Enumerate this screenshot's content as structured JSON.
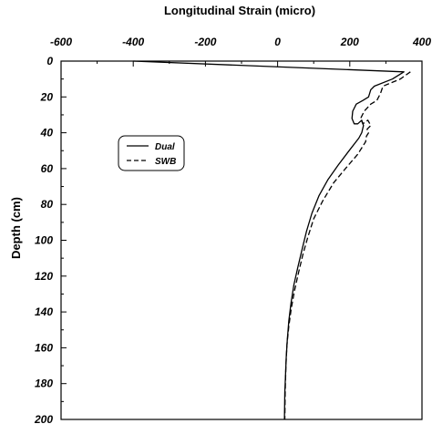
{
  "chart_data": {
    "type": "line",
    "title": "Longitudinal Strain (micro)",
    "ylabel": "Depth (cm)",
    "xlabel": "",
    "xlim": [
      -600,
      400
    ],
    "ylim": [
      0,
      200
    ],
    "y_inverted": true,
    "x_axis_position": "top",
    "x_ticks": [
      "-600",
      "-400",
      "-200",
      "0",
      "200",
      "400"
    ],
    "y_ticks": [
      "0",
      "20",
      "40",
      "60",
      "80",
      "100",
      "120",
      "140",
      "160",
      "180",
      "200"
    ],
    "grid": false,
    "legend_position": "center-left",
    "series": [
      {
        "name": "Dual",
        "style": "solid",
        "color": "#000000",
        "x": [
          -400,
          350,
          318,
          268,
          258,
          252,
          236,
          218,
          208,
          206,
          212,
          222,
          233,
          238,
          233,
          225,
          198,
          168,
          140,
          115,
          95,
          80,
          68,
          56,
          45,
          37,
          31,
          27,
          24,
          22,
          20,
          19
        ],
        "y": [
          0,
          6,
          10,
          14,
          16,
          20,
          22,
          24,
          28,
          32,
          35,
          35,
          33,
          36,
          40,
          43,
          50,
          58,
          66,
          75,
          85,
          95,
          105,
          115,
          125,
          135,
          145,
          155,
          165,
          175,
          185,
          200
        ]
      },
      {
        "name": "SWB",
        "style": "dashed",
        "color": "#000000",
        "x": [
          368,
          340,
          292,
          285,
          275,
          258,
          240,
          230,
          236,
          250,
          258,
          248,
          252,
          246,
          244,
          222,
          188,
          155,
          125,
          100,
          84,
          70,
          58,
          47,
          38,
          31,
          26,
          23,
          21,
          20
        ],
        "y": [
          6,
          10,
          14,
          18,
          22,
          24,
          28,
          32,
          35,
          33,
          36,
          38,
          40,
          42,
          45,
          52,
          60,
          68,
          78,
          88,
          98,
          108,
          118,
          128,
          138,
          148,
          158,
          170,
          185,
          200
        ]
      }
    ]
  }
}
